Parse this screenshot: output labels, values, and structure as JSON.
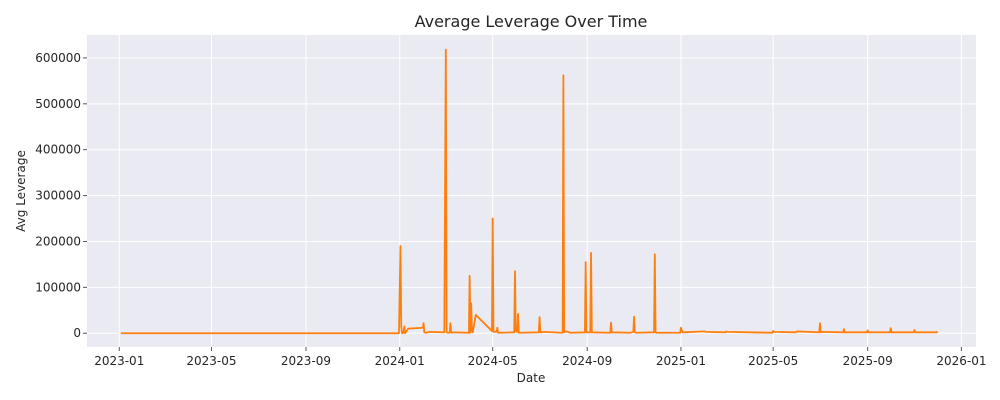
{
  "chart_data": {
    "type": "line",
    "title": "Average Leverage Over Time",
    "xlabel": "Date",
    "ylabel": "Avg Leverage",
    "grid": true,
    "line_color": "#ff7f0e",
    "background_color": "#eaeaf2",
    "x_range": [
      "2022-11-20",
      "2026-01-20"
    ],
    "ylim": [
      -30000,
      650000
    ],
    "x_ticks": [
      "2023-01-01",
      "2023-05-01",
      "2023-09-01",
      "2024-01-01",
      "2024-05-01",
      "2024-09-01",
      "2025-01-01",
      "2025-05-01",
      "2025-09-01",
      "2026-01-01"
    ],
    "x_tick_labels": [
      "2023-01",
      "2023-05",
      "2023-09",
      "2024-01",
      "2024-05",
      "2024-09",
      "2025-01",
      "2025-05",
      "2025-09",
      "2026-01"
    ],
    "y_ticks": [
      0,
      100000,
      200000,
      300000,
      400000,
      500000,
      600000
    ],
    "y_tick_labels": [
      "0",
      "100000",
      "200000",
      "300000",
      "400000",
      "500000",
      "600000"
    ],
    "series": [
      {
        "x": [
          "2023-01-03",
          "2023-12-31",
          "2024-01-02",
          "2024-01-03",
          "2024-01-04",
          "2024-01-06",
          "2024-01-07",
          "2024-01-08",
          "2024-01-10",
          "2024-01-12",
          "2024-01-31",
          "2024-02-01",
          "2024-02-02",
          "2024-02-05",
          "2024-02-08",
          "2024-02-28",
          "2024-03-01",
          "2024-03-02",
          "2024-03-04",
          "2024-03-06",
          "2024-03-07",
          "2024-03-08",
          "2024-03-10",
          "2024-03-31",
          "2024-04-01",
          "2024-04-02",
          "2024-04-03",
          "2024-04-04",
          "2024-04-05",
          "2024-04-09",
          "2024-04-30",
          "2024-05-01",
          "2024-05-02",
          "2024-05-06",
          "2024-05-07",
          "2024-05-08",
          "2024-05-29",
          "2024-05-30",
          "2024-05-31",
          "2024-06-02",
          "2024-06-03",
          "2024-06-04",
          "2024-06-30",
          "2024-07-01",
          "2024-07-02",
          "2024-07-07",
          "2024-07-31",
          "2024-08-01",
          "2024-08-02",
          "2024-08-05",
          "2024-08-10",
          "2024-08-29",
          "2024-08-30",
          "2024-08-31",
          "2024-09-05",
          "2024-09-06",
          "2024-09-07",
          "2024-10-01",
          "2024-10-02",
          "2024-10-03",
          "2024-10-27",
          "2024-10-31",
          "2024-11-01",
          "2024-11-02",
          "2024-11-04",
          "2024-11-27",
          "2024-11-28",
          "2024-11-29",
          "2024-11-30",
          "2024-12-31",
          "2025-01-01",
          "2025-01-03",
          "2025-01-05",
          "2025-02-01",
          "2025-02-02",
          "2025-02-28",
          "2025-03-01",
          "2025-03-02",
          "2025-03-31",
          "2025-04-01",
          "2025-04-30",
          "2025-05-01",
          "2025-05-02",
          "2025-05-31",
          "2025-06-01",
          "2025-06-30",
          "2025-07-01",
          "2025-07-02",
          "2025-07-03",
          "2025-07-31",
          "2025-08-01",
          "2025-08-02",
          "2025-08-31",
          "2025-09-01",
          "2025-09-02",
          "2025-09-30",
          "2025-10-01",
          "2025-10-02",
          "2025-10-31",
          "2025-11-01",
          "2025-11-02",
          "2025-11-30",
          "2025-12-01"
        ],
        "y": [
          0,
          0,
          190000,
          15000,
          0,
          1000,
          15000,
          0,
          5000,
          10000,
          12000,
          22000,
          2000,
          1000,
          3000,
          2000,
          618000,
          2000,
          1000,
          2000,
          22000,
          1000,
          2000,
          1000,
          125000,
          1000,
          65000,
          5000,
          2000,
          40000,
          5000,
          250000,
          3000,
          3000,
          12000,
          1000,
          2000,
          135000,
          5000,
          3000,
          42000,
          1000,
          2000,
          35000,
          2000,
          3000,
          1000,
          562000,
          2000,
          4000,
          1000,
          2000,
          155000,
          2000,
          2000,
          175000,
          2000,
          1000,
          23000,
          2000,
          1000,
          3000,
          36000,
          2000,
          1000,
          2000,
          172000,
          2000,
          1000,
          1000,
          12000,
          2000,
          2000,
          4000,
          3000,
          2000,
          4000,
          3000,
          2000,
          2000,
          1000,
          5000,
          3000,
          2000,
          4000,
          2000,
          22000,
          2000,
          3000,
          2000,
          9000,
          2000,
          2000,
          6000,
          2000,
          2000,
          11000,
          2000,
          2000,
          7000,
          2000,
          2000,
          4000
        ]
      }
    ]
  }
}
